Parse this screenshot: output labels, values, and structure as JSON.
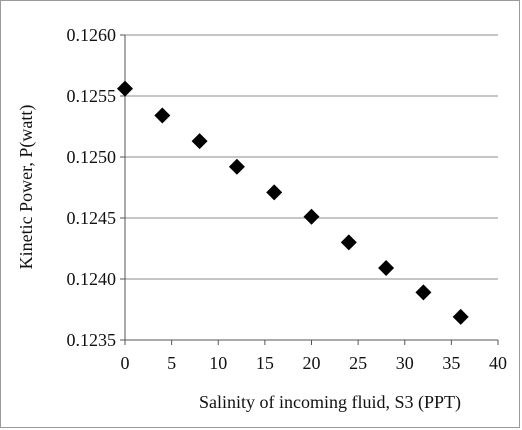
{
  "chart_data": {
    "type": "scatter",
    "xlabel": "Salinity of incoming fluid, S3 (PPT)",
    "ylabel": "Kinetic Power, P(watt)",
    "xlim": [
      0,
      40
    ],
    "ylim": [
      0.1235,
      0.126
    ],
    "xticks": [
      "0",
      "5",
      "10",
      "15",
      "20",
      "25",
      "30",
      "35",
      "40"
    ],
    "yticks": [
      "0.1235",
      "0.1240",
      "0.1245",
      "0.1250",
      "0.1255",
      "0.1260"
    ],
    "grid": "horizontal",
    "marker": "diamond",
    "marker_color": "#000000",
    "series": [
      {
        "x": [
          0,
          4,
          8,
          12,
          16,
          20,
          24,
          28,
          32,
          36
        ],
        "y": [
          0.12556,
          0.12534,
          0.12513,
          0.12492,
          0.12471,
          0.12451,
          0.1243,
          0.12409,
          0.12389,
          0.12369
        ]
      }
    ]
  }
}
